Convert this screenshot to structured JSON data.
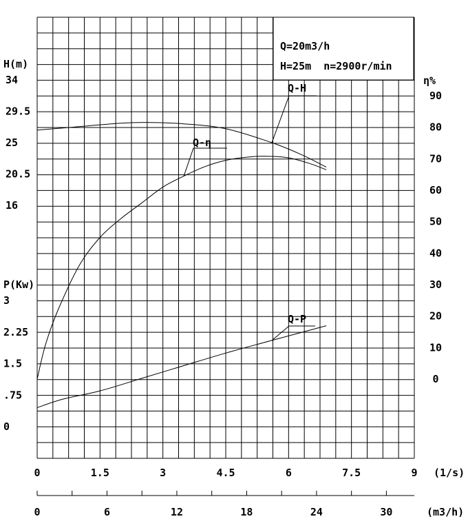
{
  "chart_data": {
    "type": "line",
    "title": "",
    "annotations": {
      "rated_flow": "Q=20m3/h",
      "rated_head_speed": "H=25m  n=2900r/min"
    },
    "axes": {
      "head": {
        "label": "H(m)",
        "ticks": [
          "34",
          "29.5",
          "25",
          "20.5",
          "16"
        ],
        "range": [
          16,
          34
        ]
      },
      "power": {
        "label": "P(Kw)",
        "ticks": [
          "3",
          "2.25",
          "1.5",
          ".75",
          "0"
        ],
        "range": [
          0,
          3
        ]
      },
      "efficiency": {
        "label": "η%",
        "ticks": [
          "90",
          "80",
          "70",
          "60",
          "50",
          "40",
          "30",
          "20",
          "10",
          "0"
        ],
        "range": [
          0,
          90
        ]
      },
      "flow_ls": {
        "label": "(1/s)",
        "ticks": [
          "0",
          "1.5",
          "3",
          "4.5",
          "6",
          "7.5",
          "9"
        ],
        "range": [
          0,
          9
        ]
      },
      "flow_m3h": {
        "label": "(m3/h)",
        "ticks": [
          "0",
          "6",
          "12",
          "18",
          "24",
          "30"
        ],
        "range": [
          0,
          32.4
        ]
      }
    },
    "series": [
      {
        "name": "Q-H",
        "unit": "m",
        "x_ls": [
          0,
          1,
          2,
          2.7,
          3.5,
          4.5,
          5.6,
          6.3,
          6.9
        ],
        "values": [
          26.8,
          27.3,
          27.8,
          27.9,
          27.7,
          27.0,
          25.0,
          23.3,
          21.5
        ]
      },
      {
        "name": "Q-η",
        "unit": "%",
        "x_ls": [
          0,
          0.2,
          0.5,
          1.0,
          1.5,
          2.0,
          2.5,
          3.0,
          3.5,
          4.0,
          4.5,
          5.0,
          5.5,
          6.0,
          6.5,
          6.9
        ],
        "values": [
          0,
          11,
          22,
          36,
          45,
          51,
          56,
          61,
          64.5,
          67.5,
          69.5,
          70.5,
          70.8,
          70.3,
          68.5,
          66.5
        ]
      },
      {
        "name": "Q-P",
        "unit": "Kw",
        "x_ls": [
          0,
          0.6,
          1.5,
          2.5,
          3.5,
          4.5,
          5.6,
          6.9
        ],
        "values": [
          0.45,
          0.65,
          0.85,
          1.15,
          1.45,
          1.75,
          2.05,
          2.4
        ]
      }
    ],
    "grid": true
  }
}
